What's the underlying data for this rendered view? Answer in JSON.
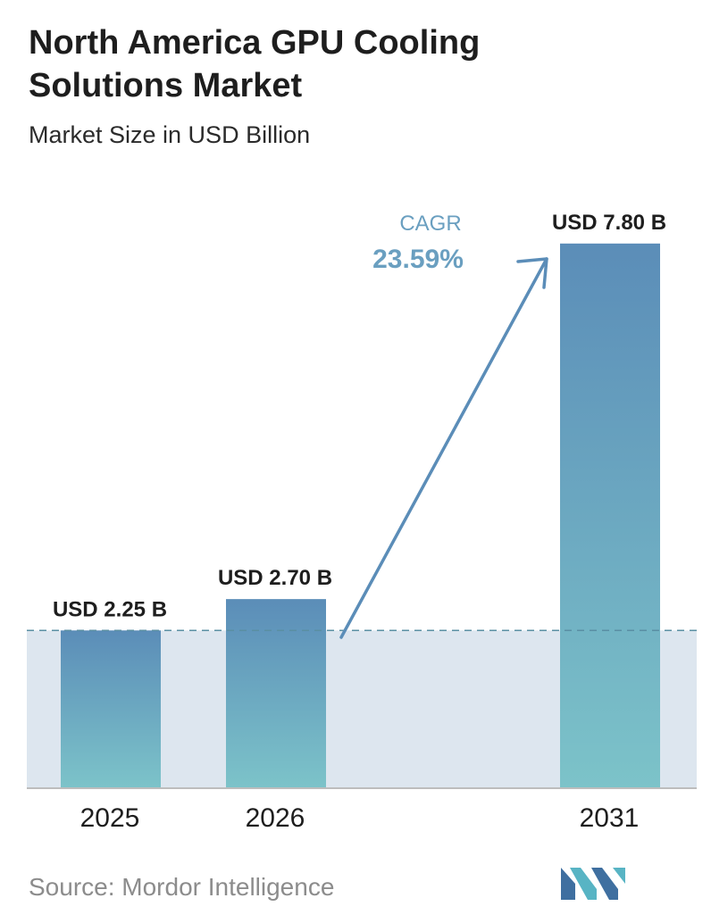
{
  "header": {
    "title": "North America GPU Cooling Solutions Market",
    "subtitle": "Market Size in USD Billion"
  },
  "chart_data": {
    "type": "bar",
    "categories": [
      "2025",
      "2026",
      "2031"
    ],
    "values": [
      2.25,
      2.7,
      7.8
    ],
    "value_labels": [
      "USD 2.25 B",
      "USD 2.70 B",
      "USD 7.80 B"
    ],
    "title": "North America GPU Cooling Solutions Market",
    "subtitle": "Market Size in USD Billion",
    "xlabel": "",
    "ylabel": "",
    "ylim": [
      0,
      8
    ],
    "grid": false,
    "annotation": {
      "label": "CAGR",
      "value": "23.59%"
    },
    "colors": {
      "bar_top": "#5b8db8",
      "bar_bottom": "#7cc3c9",
      "baseline_band": "#dde6ef",
      "dashed_line": "#5a8fa3",
      "arrow": "#5b8db8",
      "cagr_label": "#6a9fc0",
      "axis": "#bdbdbd"
    }
  },
  "footer": {
    "source": "Source: Mordor Intelligence",
    "logo": "mordor-intelligence-logo",
    "logo_colors": [
      "#3f6fa0",
      "#58b4c4"
    ]
  }
}
